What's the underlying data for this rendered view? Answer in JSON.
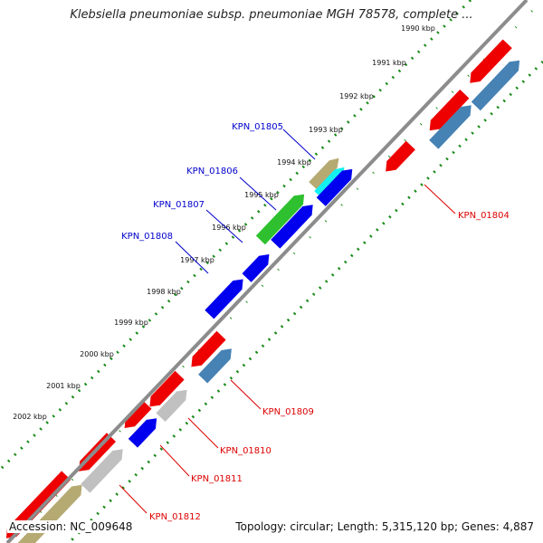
{
  "title": "Klebsiella pneumoniae subsp. pneumoniae MGH 78578, complete ...",
  "footer": {
    "accession": "Accession: NC_009648",
    "summary": "Topology: circular; Length: 5,315,120 bp; Genes: 4,887"
  },
  "ticks": [
    {
      "label": "1990 kbp",
      "kbp": 1990
    },
    {
      "label": "1991 kbp",
      "kbp": 1991
    },
    {
      "label": "1992 kbp",
      "kbp": 1992
    },
    {
      "label": "1993 kbp",
      "kbp": 1993
    },
    {
      "label": "1994 kbp",
      "kbp": 1994
    },
    {
      "label": "1995 kbp",
      "kbp": 1995
    },
    {
      "label": "1996 kbp",
      "kbp": 1996
    },
    {
      "label": "1997 kbp",
      "kbp": 1997
    },
    {
      "label": "1998 kbp",
      "kbp": 1998
    },
    {
      "label": "1999 kbp",
      "kbp": 1999
    },
    {
      "label": "2000 kbp",
      "kbp": 2000
    },
    {
      "label": "2001 kbp",
      "kbp": 2001
    },
    {
      "label": "2002 kbp",
      "kbp": 2002
    }
  ],
  "gene_labels": [
    {
      "label": "KPN_01804",
      "strand": "minus",
      "color": "#dd0000"
    },
    {
      "label": "KPN_01805",
      "strand": "plus",
      "color": "#0000cc"
    },
    {
      "label": "KPN_01806",
      "strand": "plus",
      "color": "#0000cc"
    },
    {
      "label": "KPN_01807",
      "strand": "plus",
      "color": "#0000cc"
    },
    {
      "label": "KPN_01808",
      "strand": "plus",
      "color": "#0000cc"
    },
    {
      "label": "KPN_01809",
      "strand": "minus",
      "color": "#dd0000"
    },
    {
      "label": "KPN_01810",
      "strand": "minus",
      "color": "#dd0000"
    },
    {
      "label": "KPN_01811",
      "strand": "minus",
      "color": "#dd0000"
    },
    {
      "label": "KPN_01812",
      "strand": "minus",
      "color": "#dd0000"
    }
  ],
  "colors": {
    "backbone": "#8c8c8c",
    "tick_dots": "#1a8a1a",
    "cds_red": "#ee0000",
    "cds_blue": "#0000ee",
    "cds_steel": "#4682b4",
    "cds_gray": "#c0c0c0",
    "cds_khaki": "#b5aa72",
    "cds_green": "#2fc02f",
    "cds_cyan": "#14f0f0"
  }
}
